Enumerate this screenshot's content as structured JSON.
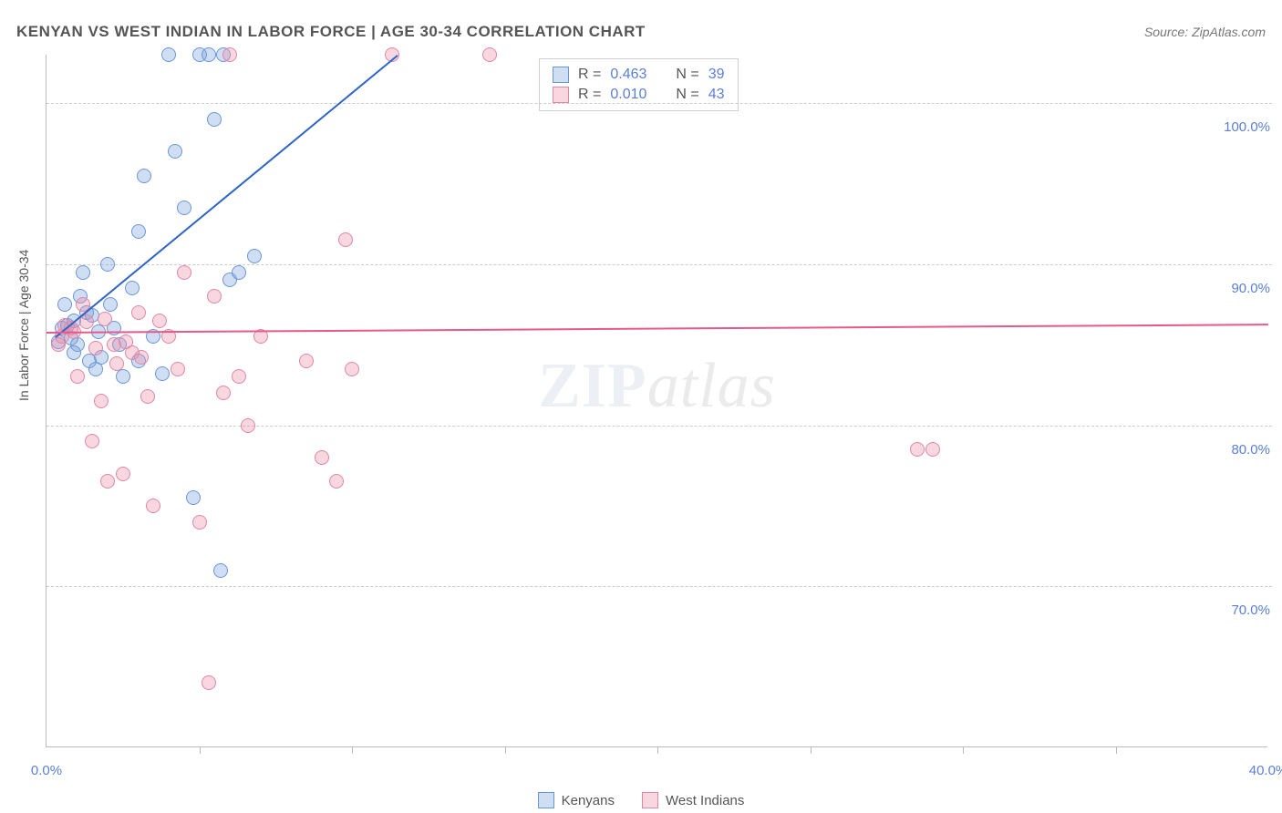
{
  "title": "KENYAN VS WEST INDIAN IN LABOR FORCE | AGE 30-34 CORRELATION CHART",
  "source": "Source: ZipAtlas.com",
  "watermark_a": "ZIP",
  "watermark_b": "atlas",
  "chart": {
    "type": "scatter",
    "ylabel": "In Labor Force | Age 30-34",
    "xlim": [
      0,
      40
    ],
    "ylim": [
      60,
      103
    ],
    "xtick_labels": [
      "0.0%",
      "40.0%"
    ],
    "xtick_positions_minor": [
      5,
      10,
      15,
      20,
      25,
      30,
      35
    ],
    "ytick_labels": [
      "70.0%",
      "80.0%",
      "90.0%",
      "100.0%"
    ],
    "ytick_values": [
      70,
      80,
      90,
      100
    ],
    "grid_color": "#cccccc",
    "background_color": "#ffffff",
    "series": [
      {
        "name": "Kenyans",
        "color_fill": "rgba(120,160,220,0.35)",
        "color_stroke": "#6a97d6",
        "R": "0.463",
        "N": "39",
        "trend": {
          "x1": 0.3,
          "y1": 85.5,
          "x2": 11.5,
          "y2": 103,
          "color": "#2f64c7"
        },
        "points": [
          [
            0.5,
            86
          ],
          [
            0.7,
            86.2
          ],
          [
            0.8,
            85.4
          ],
          [
            0.9,
            86.5
          ],
          [
            1.0,
            85.0
          ],
          [
            1.1,
            88.0
          ],
          [
            1.2,
            89.5
          ],
          [
            1.4,
            84.0
          ],
          [
            1.6,
            83.5
          ],
          [
            1.8,
            84.2
          ],
          [
            2.0,
            90.0
          ],
          [
            2.2,
            86.0
          ],
          [
            2.5,
            83.0
          ],
          [
            2.8,
            88.5
          ],
          [
            3.0,
            92.0
          ],
          [
            3.2,
            95.5
          ],
          [
            3.5,
            85.5
          ],
          [
            3.8,
            83.2
          ],
          [
            4.0,
            103
          ],
          [
            4.2,
            97.0
          ],
          [
            4.5,
            93.5
          ],
          [
            4.8,
            75.5
          ],
          [
            5.0,
            103
          ],
          [
            5.3,
            103
          ],
          [
            5.5,
            99.0
          ],
          [
            5.7,
            71.0
          ],
          [
            5.8,
            103
          ],
          [
            6.0,
            89.0
          ],
          [
            6.3,
            89.5
          ],
          [
            6.8,
            90.5
          ],
          [
            3.0,
            84.0
          ],
          [
            1.5,
            86.8
          ],
          [
            0.6,
            87.5
          ],
          [
            1.3,
            87.0
          ],
          [
            2.4,
            85.0
          ],
          [
            1.7,
            85.8
          ],
          [
            2.1,
            87.5
          ],
          [
            0.4,
            85.2
          ],
          [
            0.9,
            84.5
          ]
        ]
      },
      {
        "name": "West Indians",
        "color_fill": "rgba(235,140,170,0.35)",
        "color_stroke": "#e186a7",
        "R": "0.010",
        "N": "43",
        "trend": {
          "x1": 0,
          "y1": 85.8,
          "x2": 40,
          "y2": 86.3,
          "color": "#e55a8a"
        },
        "points": [
          [
            0.5,
            85.5
          ],
          [
            0.8,
            86.0
          ],
          [
            1.0,
            83.0
          ],
          [
            1.2,
            87.5
          ],
          [
            1.5,
            79.0
          ],
          [
            1.8,
            81.5
          ],
          [
            2.0,
            76.5
          ],
          [
            2.2,
            85.0
          ],
          [
            2.5,
            77.0
          ],
          [
            2.8,
            84.5
          ],
          [
            3.0,
            87.0
          ],
          [
            3.3,
            81.8
          ],
          [
            3.5,
            75.0
          ],
          [
            3.7,
            86.5
          ],
          [
            4.0,
            85.5
          ],
          [
            4.3,
            83.5
          ],
          [
            4.5,
            89.5
          ],
          [
            5.0,
            74.0
          ],
          [
            5.3,
            64.0
          ],
          [
            5.5,
            88.0
          ],
          [
            5.8,
            82.0
          ],
          [
            6.0,
            103
          ],
          [
            6.3,
            83.0
          ],
          [
            6.6,
            80.0
          ],
          [
            7.0,
            85.5
          ],
          [
            8.5,
            84.0
          ],
          [
            9.0,
            78.0
          ],
          [
            9.5,
            76.5
          ],
          [
            9.8,
            91.5
          ],
          [
            10.0,
            83.5
          ],
          [
            11.3,
            103
          ],
          [
            14.5,
            103
          ],
          [
            28.5,
            78.5
          ],
          [
            29.0,
            78.5
          ],
          [
            0.6,
            86.2
          ],
          [
            0.9,
            85.8
          ],
          [
            1.3,
            86.4
          ],
          [
            1.6,
            84.8
          ],
          [
            1.9,
            86.6
          ],
          [
            2.3,
            83.8
          ],
          [
            2.6,
            85.2
          ],
          [
            3.1,
            84.2
          ],
          [
            0.4,
            85.0
          ]
        ]
      }
    ],
    "legend": {
      "series1_label": "Kenyans",
      "series2_label": "West Indians"
    },
    "statbox": {
      "r_label": "R =",
      "n_label": "N ="
    }
  }
}
